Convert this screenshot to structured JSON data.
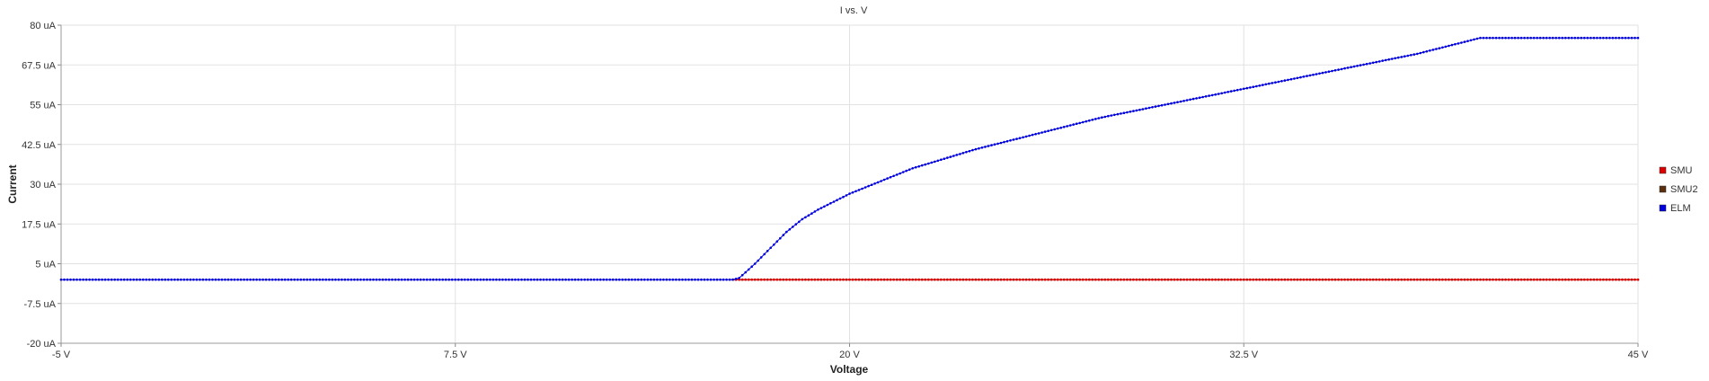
{
  "chart_data": {
    "type": "scatter",
    "title": "I vs. V",
    "xlabel": "Voltage",
    "ylabel": "Current",
    "xlim": [
      -5,
      45
    ],
    "ylim": [
      -20,
      80
    ],
    "x_ticks": [
      -5,
      7.5,
      20,
      32.5,
      45
    ],
    "x_tick_labels": [
      "-5 V",
      "7.5 V",
      "20 V",
      "32.5 V",
      "45 V"
    ],
    "y_ticks": [
      80,
      67.5,
      55,
      42.5,
      30,
      17.5,
      5,
      -7.5,
      -20
    ],
    "y_tick_labels": [
      "80 uA",
      "67.5 uA",
      "55 uA",
      "42.5 uA",
      "30 uA",
      "17.5 uA",
      "5 uA",
      "-7.5 uA",
      "-20 uA"
    ],
    "grid": true,
    "legend_position": "right",
    "series": [
      {
        "name": "SMU",
        "color": "#dd0000",
        "x_range": [
          16.3,
          45
        ],
        "y_constant": 0,
        "step": 0.1
      },
      {
        "name": "SMU2",
        "color": "#5a2e0e",
        "x_range": [
          16.3,
          45
        ],
        "y_constant": 0,
        "step": 0.1
      },
      {
        "name": "ELM",
        "color": "#0000dd",
        "x": [
          -5,
          16.3,
          16.5,
          17,
          17.5,
          18,
          18.5,
          19,
          20,
          22,
          24,
          26,
          28,
          30,
          32,
          34,
          36,
          38,
          40,
          45
        ],
        "y": [
          0,
          0,
          0.5,
          5,
          10,
          15,
          19,
          22,
          27,
          35,
          41,
          46,
          51,
          55,
          59,
          63,
          67,
          71,
          76,
          76
        ],
        "step": 0.1
      }
    ]
  }
}
